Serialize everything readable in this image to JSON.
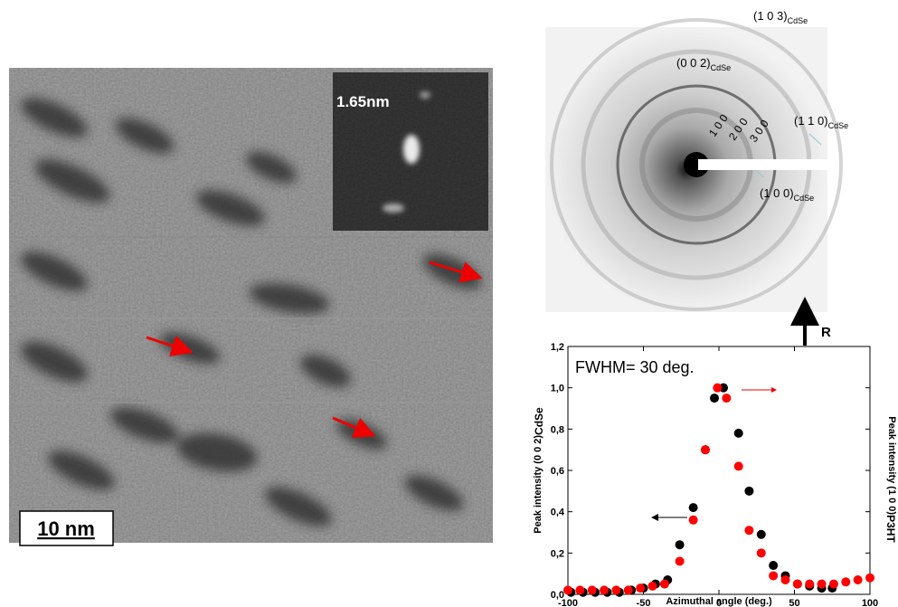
{
  "tem_image": {
    "inset_label": "1.65nm",
    "scale_bar": "10 nm"
  },
  "diffraction": {
    "labels": [
      {
        "text": "(1 0 3)",
        "sub": "CdSe"
      },
      {
        "text": "(0 0 2)",
        "sub": "CdSe"
      },
      {
        "text": "(1 1 0)",
        "sub": "CdSe"
      },
      {
        "text": "(1 0 0)",
        "sub": "CdSe"
      }
    ],
    "orders": [
      "1 0 0",
      "2 0 0",
      "3 0 0"
    ],
    "axis_label": "R"
  },
  "chart_data": {
    "type": "scatter",
    "annotation": "FWHM= 30 deg.",
    "x_label": "Azimuthal angle (deg.)",
    "y_label": "Peak intensity (0 0 2)",
    "y_label_sub": "CdSe",
    "y2_label": "Peak intensity (1 0 0)",
    "y2_label_sub": "P3HT",
    "xlim": [
      -100,
      100
    ],
    "xticks": [
      -100,
      -50,
      0,
      50,
      100
    ],
    "ylim": [
      0,
      1.2
    ],
    "yticks": [
      {
        "value": 0,
        "label": "0,0"
      },
      {
        "value": 0.2,
        "label": "0,2"
      },
      {
        "value": 0.4,
        "label": "0,4"
      },
      {
        "value": 0.6,
        "label": "0,6"
      },
      {
        "value": 0.8,
        "label": "0,8"
      },
      {
        "value": 1.0,
        "label": "1,0"
      },
      {
        "value": 1.2,
        "label": "1,2"
      }
    ],
    "series": [
      {
        "color": "#000000",
        "x": [
          -98,
          -90,
          -82,
          -74,
          -66,
          -58,
          -50,
          -42,
          -34,
          -26,
          -17,
          -9,
          -3,
          3,
          13,
          20,
          28,
          36,
          44,
          52,
          60,
          68,
          75
        ],
        "values": [
          0.01,
          0.01,
          0.01,
          0.01,
          0.01,
          0.02,
          0.03,
          0.05,
          0.07,
          0.24,
          0.42,
          0.7,
          0.95,
          1.0,
          0.78,
          0.5,
          0.29,
          0.14,
          0.09,
          0.05,
          0.04,
          0.03,
          0.03
        ]
      },
      {
        "color": "#ff0000",
        "x": [
          -100,
          -92,
          -84,
          -76,
          -68,
          -60,
          -52,
          -44,
          -36,
          -26,
          -17,
          -9,
          -1,
          5,
          13,
          20,
          28,
          36,
          44,
          52,
          60,
          68,
          76,
          84,
          92,
          100
        ],
        "values": [
          0.02,
          0.02,
          0.02,
          0.02,
          0.02,
          0.02,
          0.03,
          0.04,
          0.05,
          0.16,
          0.36,
          0.7,
          1.0,
          0.95,
          0.62,
          0.31,
          0.2,
          0.09,
          0.07,
          0.05,
          0.05,
          0.05,
          0.05,
          0.06,
          0.07,
          0.08
        ]
      }
    ]
  }
}
